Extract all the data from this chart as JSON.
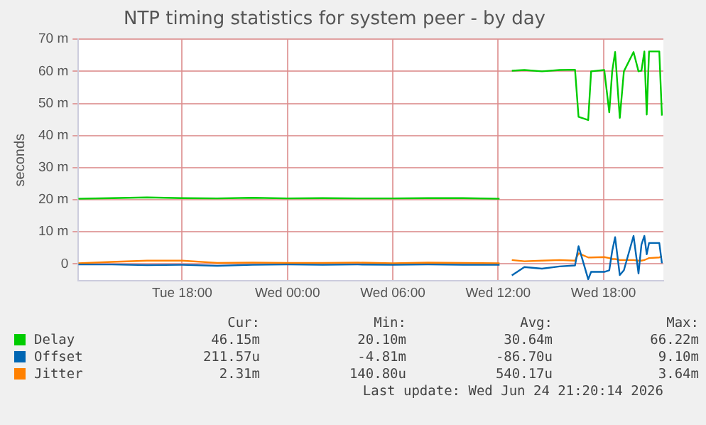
{
  "chart_data": {
    "type": "line",
    "title": "NTP timing statistics for system peer - by day",
    "ylabel": "seconds",
    "x": [
      "2026-06-23T12:05",
      "2026-06-23T14:00",
      "2026-06-23T16:00",
      "2026-06-23T18:00",
      "2026-06-23T20:00",
      "2026-06-23T22:00",
      "2026-06-24T00:00",
      "2026-06-24T02:00",
      "2026-06-24T04:00",
      "2026-06-24T06:00",
      "2026-06-24T08:00",
      "2026-06-24T10:00",
      "2026-06-24T12:05",
      "2026-06-24T12:25",
      "2026-06-24T12:47",
      "2026-06-24T13:30",
      "2026-06-24T14:30",
      "2026-06-24T15:30",
      "2026-06-24T16:23",
      "2026-06-24T16:35",
      "2026-06-24T17:08",
      "2026-06-24T17:18",
      "2026-06-24T18:03",
      "2026-06-24T18:20",
      "2026-06-24T18:30",
      "2026-06-24T18:40",
      "2026-06-24T18:56",
      "2026-06-24T19:10",
      "2026-06-24T19:43",
      "2026-06-24T20:00",
      "2026-06-24T20:10",
      "2026-06-24T20:20",
      "2026-06-24T20:28",
      "2026-06-24T20:36",
      "2026-06-24T21:11",
      "2026-06-24T21:20"
    ],
    "series": [
      {
        "name": "Delay",
        "color": "#00cc00",
        "values": [
          20.3,
          20.5,
          20.7,
          20.5,
          20.4,
          20.6,
          20.4,
          20.5,
          20.4,
          20.4,
          20.5,
          20.5,
          20.3,
          null,
          60.2,
          60.4,
          60,
          60.4,
          60.5,
          45.8,
          44.8,
          60,
          60.4,
          47.2,
          60,
          66,
          45.5,
          60,
          66,
          60,
          60.2,
          66.2,
          46.5,
          66.2,
          66.2,
          46.2
        ]
      },
      {
        "name": "Offset",
        "color": "#0066b3",
        "values": [
          -0.2,
          -0.2,
          -0.4,
          -0.3,
          -0.6,
          -0.3,
          -0.2,
          -0.3,
          -0.2,
          -0.3,
          -0.2,
          -0.3,
          -0.3,
          null,
          -3.6,
          -1,
          -1.5,
          -0.8,
          -0.5,
          5.5,
          -4.8,
          -2.5,
          -2.5,
          -2,
          4,
          8.3,
          -3.5,
          -2,
          8.7,
          -3,
          6,
          8.7,
          3,
          6.5,
          6.5,
          0.2
        ]
      },
      {
        "name": "Jitter",
        "color": "#ff8000",
        "values": [
          0.2,
          0.6,
          1,
          1,
          0.3,
          0.4,
          0.3,
          0.3,
          0.4,
          0.2,
          0.4,
          0.3,
          0.2,
          null,
          1.2,
          0.8,
          1,
          1.2,
          1,
          3.3,
          2,
          2,
          2.1,
          1.8,
          1.5,
          1.5,
          1.2,
          1.2,
          1.2,
          1,
          1,
          1.2,
          1.5,
          1.8,
          2,
          2.3
        ]
      }
    ],
    "xlim": [
      "2026-06-23T12:05",
      "2026-06-24T21:25"
    ],
    "xticks": [
      {
        "value": "2026-06-23T18:00",
        "label": "Tue 18:00"
      },
      {
        "value": "2026-06-24T00:00",
        "label": "Wed 00:00"
      },
      {
        "value": "2026-06-24T06:00",
        "label": "Wed 06:00"
      },
      {
        "value": "2026-06-24T12:00",
        "label": "Wed 12:00"
      },
      {
        "value": "2026-06-24T18:00",
        "label": "Wed 18:00"
      }
    ],
    "ylim": [
      -5.3,
      70
    ],
    "yticks": [
      0,
      {
        "value": 10,
        "label": "10 m"
      },
      {
        "value": 20,
        "label": "20 m"
      },
      {
        "value": 30,
        "label": "30 m"
      },
      {
        "value": 40,
        "label": "40 m"
      },
      {
        "value": 50,
        "label": "50 m"
      },
      {
        "value": 60,
        "label": "60 m"
      },
      {
        "value": 70,
        "label": "70 m"
      }
    ],
    "grid": true,
    "legend": "bottom",
    "marker": "none",
    "line_style": "solid",
    "annotations": [
      "Cur:",
      "Min:",
      "Avg:",
      "Max:",
      "46.15m",
      "20.10m",
      "30.64m",
      "66.22m",
      "211.57u",
      "-4.81m",
      "-86.70u",
      "9.10m",
      "2.31m",
      "140.80u",
      "540.17u",
      "3.64m",
      "Last update: Wed Jun 24 21:20:14 2026"
    ]
  }
}
